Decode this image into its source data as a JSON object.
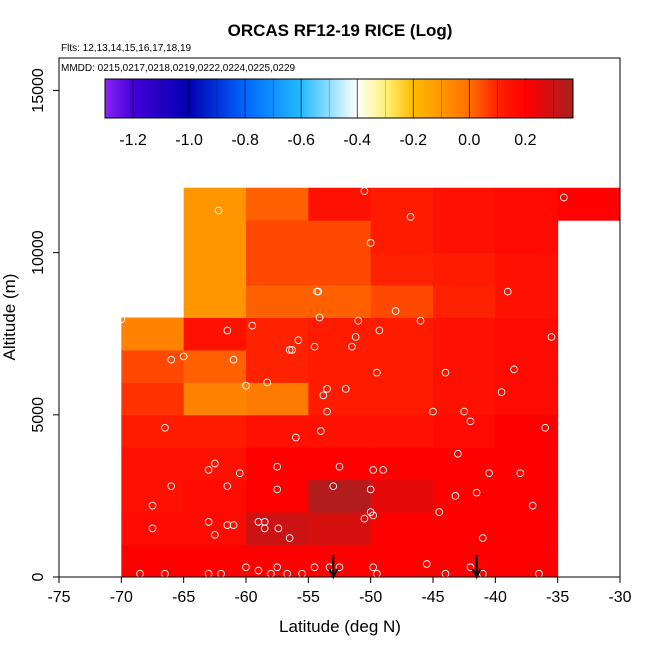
{
  "chart_data": {
    "type": "heatmap",
    "title": "ORCAS RF12-19 RICE (Log)",
    "subtitle_flights": "Flts: 12,13,14,15,16,17,18,19",
    "subtitle_dates": "MMDD: 0215,0217,0218,0219,0222,0224,0225,0229",
    "xlabel": "Latitude (deg N)",
    "ylabel": "Altitude (m)",
    "xlim": [
      -75,
      -30
    ],
    "ylim": [
      0,
      16000
    ],
    "x_ticks": [
      -75,
      -70,
      -65,
      -60,
      -55,
      -50,
      -45,
      -40,
      -35,
      -30
    ],
    "x_tick_labels": [
      "-75",
      "-70",
      "-65",
      "-60",
      "-55",
      "-50",
      "-45",
      "-40",
      "-35",
      "-30"
    ],
    "y_ticks": [
      0,
      5000,
      10000,
      15000
    ],
    "y_tick_labels": [
      "0",
      "5000",
      "10000",
      "15000"
    ],
    "colorbar": {
      "range": [
        -1.3,
        0.37
      ],
      "ticks": [
        -1.2,
        -1.0,
        -0.8,
        -0.6,
        -0.4,
        -0.2,
        0.0,
        0.2
      ],
      "tick_labels": [
        "-1.2",
        "-1.0",
        "-0.8",
        "-0.6",
        "-0.4",
        "-0.2",
        "0.0",
        "0.2"
      ],
      "stops": [
        {
          "v": -1.3,
          "c": "#8B25F5"
        },
        {
          "v": -1.2,
          "c": "#4400D8"
        },
        {
          "v": -1.0,
          "c": "#0000B0"
        },
        {
          "v": -0.8,
          "c": "#0066FF"
        },
        {
          "v": -0.6,
          "c": "#22BBFF"
        },
        {
          "v": -0.4,
          "c": "#FFFFFF"
        },
        {
          "v": -0.3,
          "c": "#FFF27A"
        },
        {
          "v": -0.2,
          "c": "#FFBB00"
        },
        {
          "v": 0.0,
          "c": "#FF7000"
        },
        {
          "v": 0.1,
          "c": "#FF2200"
        },
        {
          "v": 0.2,
          "c": "#FF0000"
        },
        {
          "v": 0.37,
          "c": "#A82020"
        }
      ]
    },
    "cell_height_m": 1000,
    "cell_width_deg": 5,
    "cells": [
      {
        "lon": -70,
        "alt": 0,
        "value": 0.2
      },
      {
        "lon": -65,
        "alt": 0,
        "value": 0.2
      },
      {
        "lon": -60,
        "alt": 0,
        "value": 0.2
      },
      {
        "lon": -55,
        "alt": 0,
        "value": 0.2
      },
      {
        "lon": -50,
        "alt": 0,
        "value": 0.2
      },
      {
        "lon": -45,
        "alt": 0,
        "value": 0.2
      },
      {
        "lon": -40,
        "alt": 0,
        "value": 0.2
      },
      {
        "lon": -70,
        "alt": 1000,
        "value": 0.17
      },
      {
        "lon": -65,
        "alt": 1000,
        "value": 0.17
      },
      {
        "lon": -60,
        "alt": 1000,
        "value": 0.3
      },
      {
        "lon": -55,
        "alt": 1000,
        "value": 0.28
      },
      {
        "lon": -50,
        "alt": 1000,
        "value": 0.2
      },
      {
        "lon": -45,
        "alt": 1000,
        "value": 0.2
      },
      {
        "lon": -40,
        "alt": 1000,
        "value": 0.2
      },
      {
        "lon": -70,
        "alt": 2000,
        "value": 0.15
      },
      {
        "lon": -65,
        "alt": 2000,
        "value": 0.17
      },
      {
        "lon": -60,
        "alt": 2000,
        "value": 0.2
      },
      {
        "lon": -55,
        "alt": 2000,
        "value": 0.35
      },
      {
        "lon": -50,
        "alt": 2000,
        "value": 0.25
      },
      {
        "lon": -45,
        "alt": 2000,
        "value": 0.2
      },
      {
        "lon": -40,
        "alt": 2000,
        "value": 0.2
      },
      {
        "lon": -70,
        "alt": 3000,
        "value": 0.15
      },
      {
        "lon": -65,
        "alt": 3000,
        "value": 0.15
      },
      {
        "lon": -60,
        "alt": 3000,
        "value": 0.2
      },
      {
        "lon": -55,
        "alt": 3000,
        "value": 0.2
      },
      {
        "lon": -50,
        "alt": 3000,
        "value": 0.2
      },
      {
        "lon": -45,
        "alt": 3000,
        "value": 0.2
      },
      {
        "lon": -40,
        "alt": 3000,
        "value": 0.2
      },
      {
        "lon": -70,
        "alt": 4000,
        "value": 0.12
      },
      {
        "lon": -65,
        "alt": 4000,
        "value": 0.12
      },
      {
        "lon": -60,
        "alt": 4000,
        "value": 0.15
      },
      {
        "lon": -55,
        "alt": 4000,
        "value": 0.15
      },
      {
        "lon": -50,
        "alt": 4000,
        "value": 0.15
      },
      {
        "lon": -45,
        "alt": 4000,
        "value": 0.17
      },
      {
        "lon": -40,
        "alt": 4000,
        "value": 0.2
      },
      {
        "lon": -70,
        "alt": 5000,
        "value": 0.08
      },
      {
        "lon": -65,
        "alt": 5000,
        "value": -0.05
      },
      {
        "lon": -60,
        "alt": 5000,
        "value": -0.03
      },
      {
        "lon": -55,
        "alt": 5000,
        "value": 0.12
      },
      {
        "lon": -50,
        "alt": 5000,
        "value": 0.12
      },
      {
        "lon": -45,
        "alt": 5000,
        "value": 0.15
      },
      {
        "lon": -40,
        "alt": 5000,
        "value": 0.17
      },
      {
        "lon": -70,
        "alt": 6000,
        "value": 0.05
      },
      {
        "lon": -65,
        "alt": 6000,
        "value": 0.02
      },
      {
        "lon": -60,
        "alt": 6000,
        "value": 0.1
      },
      {
        "lon": -55,
        "alt": 6000,
        "value": 0.12
      },
      {
        "lon": -50,
        "alt": 6000,
        "value": 0.12
      },
      {
        "lon": -45,
        "alt": 6000,
        "value": 0.15
      },
      {
        "lon": -40,
        "alt": 6000,
        "value": 0.17
      },
      {
        "lon": -70,
        "alt": 7000,
        "value": -0.05
      },
      {
        "lon": -65,
        "alt": 7000,
        "value": 0.15
      },
      {
        "lon": -60,
        "alt": 7000,
        "value": 0.1
      },
      {
        "lon": -55,
        "alt": 7000,
        "value": 0.12
      },
      {
        "lon": -50,
        "alt": 7000,
        "value": 0.12
      },
      {
        "lon": -45,
        "alt": 7000,
        "value": 0.15
      },
      {
        "lon": -40,
        "alt": 7000,
        "value": 0.17
      },
      {
        "lon": -65,
        "alt": 8000,
        "value": -0.1
      },
      {
        "lon": -60,
        "alt": 8000,
        "value": 0.02
      },
      {
        "lon": -55,
        "alt": 8000,
        "value": 0.02
      },
      {
        "lon": -50,
        "alt": 8000,
        "value": 0.05
      },
      {
        "lon": -45,
        "alt": 8000,
        "value": 0.1
      },
      {
        "lon": -40,
        "alt": 8000,
        "value": 0.15
      },
      {
        "lon": -65,
        "alt": 9000,
        "value": -0.1
      },
      {
        "lon": -60,
        "alt": 9000,
        "value": 0.05
      },
      {
        "lon": -55,
        "alt": 9000,
        "value": 0.05
      },
      {
        "lon": -50,
        "alt": 9000,
        "value": 0.1
      },
      {
        "lon": -45,
        "alt": 9000,
        "value": 0.12
      },
      {
        "lon": -40,
        "alt": 9000,
        "value": 0.15
      },
      {
        "lon": -65,
        "alt": 10000,
        "value": -0.1
      },
      {
        "lon": -60,
        "alt": 10000,
        "value": 0.05
      },
      {
        "lon": -55,
        "alt": 10000,
        "value": 0.05
      },
      {
        "lon": -50,
        "alt": 10000,
        "value": 0.12
      },
      {
        "lon": -45,
        "alt": 10000,
        "value": 0.15
      },
      {
        "lon": -40,
        "alt": 10000,
        "value": 0.17
      },
      {
        "lon": -65,
        "alt": 11000,
        "value": -0.1
      },
      {
        "lon": -60,
        "alt": 11000,
        "value": 0.02
      },
      {
        "lon": -55,
        "alt": 11000,
        "value": 0.15
      },
      {
        "lon": -50,
        "alt": 11000,
        "value": 0.12
      },
      {
        "lon": -45,
        "alt": 11000,
        "value": 0.15
      },
      {
        "lon": -40,
        "alt": 11000,
        "value": 0.17
      },
      {
        "lon": -35,
        "alt": 11000,
        "value": 0.2
      }
    ],
    "points": [
      [
        -70,
        7950
      ],
      [
        -66,
        6700
      ],
      [
        -65,
        6800
      ],
      [
        -61,
        6700
      ],
      [
        -61.5,
        7600
      ],
      [
        -62.5,
        3500
      ],
      [
        -63,
        3300
      ],
      [
        -66.5,
        4600
      ],
      [
        -66,
        2800
      ],
      [
        -67.5,
        2200
      ],
      [
        -67.5,
        1500
      ],
      [
        -63,
        1700
      ],
      [
        -62.5,
        1300
      ],
      [
        -61.5,
        2800
      ],
      [
        -61.5,
        1600
      ],
      [
        -61,
        1600
      ],
      [
        -60.5,
        3200
      ],
      [
        -60,
        5900
      ],
      [
        -59.5,
        7750
      ],
      [
        -59,
        1700
      ],
      [
        -58.5,
        1500
      ],
      [
        -58.5,
        1700
      ],
      [
        -58.3,
        6000
      ],
      [
        -57.5,
        2700
      ],
      [
        -57.5,
        3400
      ],
      [
        -57.4,
        1500
      ],
      [
        -56.5,
        7000
      ],
      [
        -56.3,
        7000
      ],
      [
        -56,
        4300
      ],
      [
        -55.8,
        7300
      ],
      [
        -56.5,
        1200
      ],
      [
        -54.5,
        7100
      ],
      [
        -54.3,
        8800
      ],
      [
        -54.2,
        8800
      ],
      [
        -54.1,
        8000
      ],
      [
        -54,
        4500
      ],
      [
        -53.8,
        5600
      ],
      [
        -53.5,
        5800
      ],
      [
        -53.5,
        5100
      ],
      [
        -53,
        2800
      ],
      [
        -52.5,
        3400
      ],
      [
        -52,
        5800
      ],
      [
        -51.5,
        7100
      ],
      [
        -51.2,
        7400
      ],
      [
        -51,
        7900
      ],
      [
        -50.5,
        11900
      ],
      [
        -50,
        10300
      ],
      [
        -49.8,
        3300
      ],
      [
        -49.5,
        6300
      ],
      [
        -49.3,
        7600
      ],
      [
        -49,
        3300
      ],
      [
        -50,
        2700
      ],
      [
        -50,
        2000
      ],
      [
        -50.5,
        1800
      ],
      [
        -49.8,
        1900
      ],
      [
        -49.5,
        100
      ],
      [
        -49.8,
        300
      ],
      [
        -48,
        8200
      ],
      [
        -46,
        7900
      ],
      [
        -45,
        5100
      ],
      [
        -44.5,
        2000
      ],
      [
        -44,
        6300
      ],
      [
        -43,
        3800
      ],
      [
        -43.2,
        2500
      ],
      [
        -42.5,
        5100
      ],
      [
        -42,
        4800
      ],
      [
        -41.5,
        2600
      ],
      [
        -41,
        1200
      ],
      [
        -41,
        100
      ],
      [
        -40.5,
        3200
      ],
      [
        -39.5,
        5700
      ],
      [
        -39,
        8800
      ],
      [
        -38.5,
        6400
      ],
      [
        -38,
        3200
      ],
      [
        -37,
        2200
      ],
      [
        -36.5,
        100
      ],
      [
        -36,
        4600
      ],
      [
        -35.5,
        7400
      ],
      [
        -34.5,
        11700
      ],
      [
        -46.8,
        11100
      ],
      [
        -62.2,
        11300
      ],
      [
        -53.3,
        300
      ],
      [
        -52.5,
        300
      ],
      [
        -63,
        100
      ],
      [
        -62,
        100
      ],
      [
        -60,
        300
      ],
      [
        -59,
        200
      ],
      [
        -58,
        100
      ],
      [
        -57.5,
        300
      ],
      [
        -56.7,
        100
      ],
      [
        -55.5,
        100
      ],
      [
        -54.5,
        300
      ],
      [
        -66.5,
        100
      ],
      [
        -68.5,
        100
      ],
      [
        -45.5,
        400
      ],
      [
        -44,
        100
      ],
      [
        -42,
        300
      ]
    ],
    "arrows_at_lat": [
      -53,
      -41.5
    ]
  }
}
